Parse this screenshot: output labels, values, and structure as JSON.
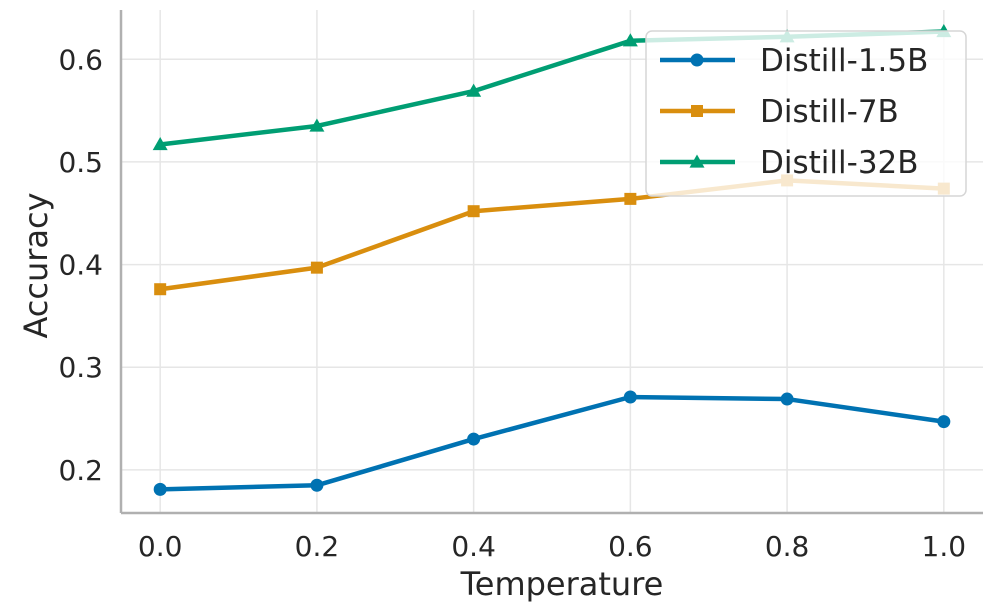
{
  "chart_data": {
    "type": "line",
    "title": "",
    "xlabel": "Temperature",
    "ylabel": "Accuracy",
    "x": [
      0.0,
      0.2,
      0.4,
      0.6,
      0.8,
      1.0
    ],
    "x_tick_labels": [
      "0.0",
      "0.2",
      "0.4",
      "0.6",
      "0.8",
      "1.0"
    ],
    "y_ticks": [
      0.2,
      0.3,
      0.4,
      0.5,
      0.6
    ],
    "y_tick_labels": [
      "0.2",
      "0.3",
      "0.4",
      "0.5",
      "0.6"
    ],
    "xlim": [
      -0.05,
      1.05
    ],
    "ylim": [
      0.158,
      0.648
    ],
    "grid": true,
    "legend_position": "top-right",
    "series": [
      {
        "name": "Distill-1.5B",
        "color": "#0072b2",
        "marker": "circle",
        "values": [
          0.181,
          0.185,
          0.23,
          0.271,
          0.269,
          0.247
        ]
      },
      {
        "name": "Distill-7B",
        "color": "#d98e0e",
        "marker": "square",
        "values": [
          0.376,
          0.397,
          0.452,
          0.464,
          0.482,
          0.474
        ]
      },
      {
        "name": "Distill-32B",
        "color": "#009e73",
        "marker": "triangle",
        "values": [
          0.517,
          0.535,
          0.569,
          0.618,
          0.622,
          0.627
        ]
      }
    ]
  }
}
